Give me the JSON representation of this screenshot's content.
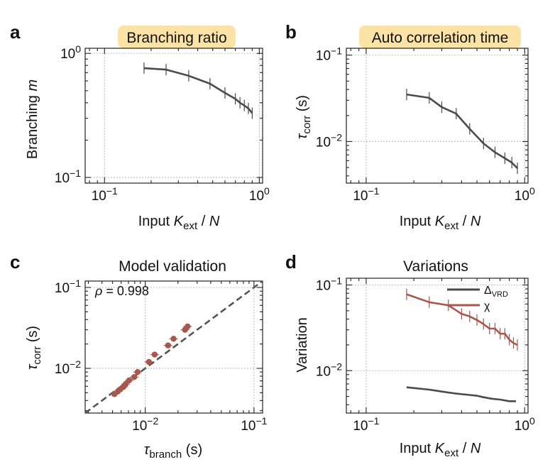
{
  "colors": {
    "dark_line": "#4a4a4a",
    "red_line": "#a8574c",
    "title_highlight": "#fbe3a6"
  },
  "chart_data": [
    {
      "panel": "a",
      "type": "line",
      "title": "Branching ratio",
      "xlabel": {
        "pre": "Input ",
        "var": "K",
        "sub": "ext",
        "post": " / ",
        "var2": "N"
      },
      "ylabel": {
        "pre": "Branching ",
        "var": "m"
      },
      "xscale": "log",
      "yscale": "log",
      "xlim": [
        0.075,
        1.05
      ],
      "ylim": [
        0.09,
        1.1
      ],
      "xticks": [
        {
          "v": 0.1,
          "base": "10",
          "exp": "−1"
        },
        {
          "v": 1,
          "base": "10",
          "exp": "0"
        }
      ],
      "yticks": [
        {
          "v": 0.1,
          "base": "10",
          "exp": "−1"
        },
        {
          "v": 1,
          "base": "10",
          "exp": "0"
        }
      ],
      "grid": true,
      "series": [
        {
          "color": "#4a4a4a",
          "x": [
            0.18,
            0.25,
            0.35,
            0.48,
            0.6,
            0.7,
            0.75,
            0.8,
            0.85,
            0.9
          ],
          "y": [
            0.76,
            0.74,
            0.66,
            0.57,
            0.48,
            0.43,
            0.4,
            0.38,
            0.36,
            0.33
          ]
        }
      ]
    },
    {
      "panel": "b",
      "type": "line",
      "title": "Auto correlation time",
      "xlabel": {
        "pre": "Input ",
        "var": "K",
        "sub": "ext",
        "post": " / ",
        "var2": "N"
      },
      "ylabel": {
        "var": "τ",
        "sub": "corr",
        "post": " (s)"
      },
      "xscale": "log",
      "yscale": "log",
      "xlim": [
        0.075,
        1.05
      ],
      "ylim": [
        0.0033,
        0.12
      ],
      "xticks": [
        {
          "v": 0.1,
          "base": "10",
          "exp": "−1"
        },
        {
          "v": 1,
          "base": "10",
          "exp": "0"
        }
      ],
      "yticks": [
        {
          "v": 0.01,
          "base": "10",
          "exp": "−2"
        },
        {
          "v": 0.1,
          "base": "10",
          "exp": "−1"
        }
      ],
      "grid": true,
      "series": [
        {
          "color": "#4a4a4a",
          "x": [
            0.18,
            0.25,
            0.3,
            0.37,
            0.45,
            0.55,
            0.65,
            0.75,
            0.83,
            0.9
          ],
          "y": [
            0.035,
            0.032,
            0.025,
            0.021,
            0.014,
            0.0095,
            0.0075,
            0.0064,
            0.0057,
            0.0049
          ]
        }
      ]
    },
    {
      "panel": "c",
      "type": "scatter",
      "title": "Model validation",
      "xlabel": {
        "var": "τ",
        "sub": "branch",
        "post": " (s)"
      },
      "ylabel": {
        "var": "τ",
        "sub": "corr",
        "post": " (s)"
      },
      "xscale": "log",
      "yscale": "log",
      "xlim": [
        0.0028,
        0.12
      ],
      "ylim": [
        0.0028,
        0.12
      ],
      "xticks": [
        {
          "v": 0.01,
          "base": "10",
          "exp": "−2"
        },
        {
          "v": 0.1,
          "base": "10",
          "exp": "−1"
        }
      ],
      "yticks": [
        {
          "v": 0.01,
          "base": "10",
          "exp": "−2"
        },
        {
          "v": 0.1,
          "base": "10",
          "exp": "−1"
        }
      ],
      "grid": true,
      "annotation": {
        "var": "ρ",
        "text": " = 0.998"
      },
      "reference_line": "y = x",
      "series": [
        {
          "color": "#a8574c",
          "x": [
            0.0052,
            0.0056,
            0.0059,
            0.0063,
            0.0066,
            0.0071,
            0.0079,
            0.0085,
            0.0108,
            0.0122,
            0.0162,
            0.0182,
            0.0232,
            0.0245
          ],
          "y": [
            0.0048,
            0.0052,
            0.0055,
            0.0059,
            0.0064,
            0.0071,
            0.0078,
            0.009,
            0.012,
            0.0148,
            0.0192,
            0.0232,
            0.03,
            0.033
          ]
        }
      ]
    },
    {
      "panel": "d",
      "type": "line",
      "title": "Variations",
      "xlabel": {
        "pre": "Input ",
        "var": "K",
        "sub": "ext",
        "post": " / ",
        "var2": "N"
      },
      "ylabel": {
        "pre": "Variation"
      },
      "xscale": "log",
      "yscale": "log",
      "xlim": [
        0.075,
        1.05
      ],
      "ylim": [
        0.0032,
        0.12
      ],
      "xticks": [
        {
          "v": 0.1,
          "base": "10",
          "exp": "−1"
        },
        {
          "v": 1,
          "base": "10",
          "exp": "0"
        }
      ],
      "yticks": [
        {
          "v": 0.01,
          "base": "10",
          "exp": "−2"
        },
        {
          "v": 0.1,
          "base": "10",
          "exp": "−1"
        }
      ],
      "grid": true,
      "legend_position": "top-right",
      "series": [
        {
          "name": "Δ",
          "name_sub": "VRD",
          "color": "#4a4a4a",
          "x": [
            0.18,
            0.25,
            0.3,
            0.37,
            0.45,
            0.5,
            0.55,
            0.62,
            0.7,
            0.8,
            0.88
          ],
          "y": [
            0.0064,
            0.006,
            0.0057,
            0.0054,
            0.0052,
            0.0051,
            0.0049,
            0.0047,
            0.0046,
            0.0044,
            0.0044
          ]
        },
        {
          "name": "χ",
          "color": "#a8574c",
          "x": [
            0.18,
            0.25,
            0.33,
            0.4,
            0.45,
            0.5,
            0.55,
            0.6,
            0.65,
            0.7,
            0.75,
            0.8,
            0.85,
            0.9
          ],
          "y": [
            0.078,
            0.063,
            0.058,
            0.046,
            0.043,
            0.039,
            0.035,
            0.031,
            0.031,
            0.027,
            0.027,
            0.023,
            0.021,
            0.02
          ]
        }
      ]
    }
  ]
}
